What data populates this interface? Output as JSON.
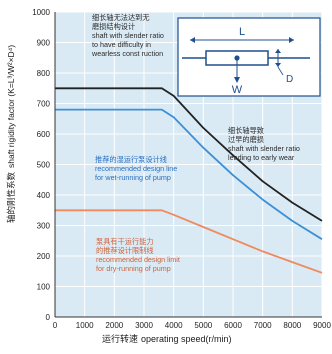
{
  "chart_data": {
    "type": "line",
    "xlabel_cn": "运行转速",
    "xlabel_en": "operating speed(r/min)",
    "ylabel_cn": "轴的刚性系数",
    "ylabel_en": "shaft rigidity factor (K=L³/W²×D⁴)",
    "xlim": [
      0,
      9000
    ],
    "ylim": [
      0,
      1000
    ],
    "x_ticks": [
      0,
      1000,
      2000,
      3000,
      4000,
      5000,
      6000,
      7000,
      8000,
      9000
    ],
    "y_ticks": [
      0,
      100,
      200,
      300,
      400,
      500,
      600,
      700,
      800,
      900,
      1000
    ],
    "grid": true,
    "background": "#d9eaf5",
    "series": [
      {
        "color": "#222222",
        "points": [
          [
            0,
            750
          ],
          [
            3600,
            750
          ],
          [
            4000,
            725
          ],
          [
            5000,
            620
          ],
          [
            6000,
            530
          ],
          [
            7000,
            445
          ],
          [
            8000,
            375
          ],
          [
            9000,
            315
          ]
        ]
      },
      {
        "color": "#3d8fd6",
        "points": [
          [
            0,
            680
          ],
          [
            3600,
            680
          ],
          [
            4000,
            655
          ],
          [
            5000,
            555
          ],
          [
            6000,
            465
          ],
          [
            7000,
            385
          ],
          [
            8000,
            315
          ],
          [
            9000,
            255
          ]
        ]
      },
      {
        "color": "#f08a5d",
        "points": [
          [
            0,
            350
          ],
          [
            3600,
            350
          ],
          [
            4000,
            335
          ],
          [
            5000,
            295
          ],
          [
            6000,
            255
          ],
          [
            7000,
            215
          ],
          [
            8000,
            180
          ],
          [
            9000,
            145
          ]
        ]
      }
    ],
    "annotations": [
      {
        "key": "black_top",
        "lines": [
          "细长轴无法达到无",
          "磨损结构设计",
          "shaft with slender ratio",
          "to have difficulty in",
          "wearless const ruction"
        ]
      },
      {
        "key": "black_right",
        "lines": [
          "细长轴导致",
          "过早的磨损",
          "shaft with slender ratio",
          "leading to early wear"
        ]
      },
      {
        "key": "blue_mid",
        "lines": [
          "推荐的湿运行泵设计线",
          "recommended design line",
          "for wet-running of pump"
        ]
      },
      {
        "key": "orange_low",
        "lines": [
          "泵具有干运行能力",
          "的推荐设计限制线",
          "recommended design limit",
          "for dry-running of pump"
        ]
      }
    ],
    "inset": {
      "label_L": "L",
      "label_D": "D",
      "label_W": "W"
    }
  }
}
